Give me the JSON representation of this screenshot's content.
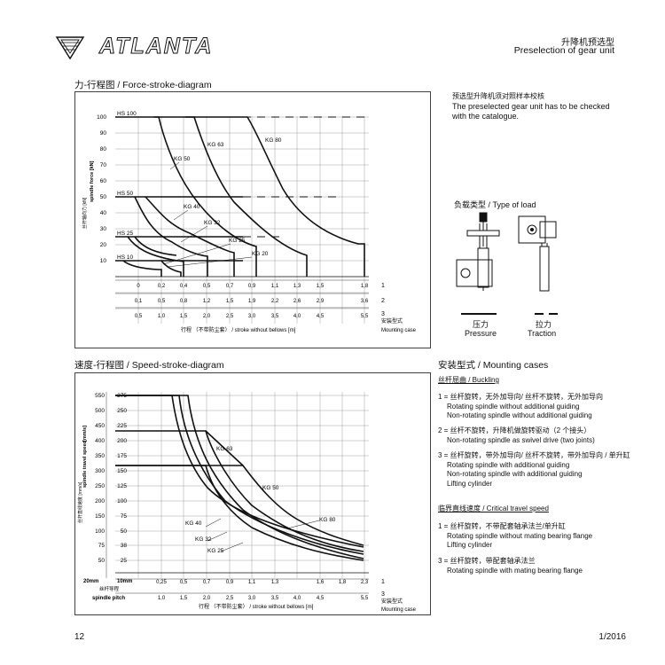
{
  "header": {
    "brand": "ATLANTA",
    "title_cn": "升降机预选型",
    "title_en": "Preselection of gear unit"
  },
  "force_diagram": {
    "title": "力-行程图 / Force-stroke-diagram",
    "y_axis_label_cn": "丝杆轴向力 [kN]",
    "y_axis_label_en": "spindle force [kN]",
    "y_ticks": [
      "100",
      "90",
      "80",
      "70",
      "60",
      "50",
      "40",
      "30",
      "20",
      "10"
    ],
    "hs_labels": [
      "HS 100",
      "HS 50",
      "HS 25",
      "HS 10"
    ],
    "kg_labels": [
      "KG 80",
      "KG 63",
      "KG 50",
      "KG 40",
      "KG 32",
      "KG 25",
      "KG 20"
    ],
    "row1": [
      "0",
      "0,2",
      "0,4",
      "0,5",
      "0,7",
      "0,9",
      "1,1",
      "1,3",
      "1,5",
      "1,8"
    ],
    "row2": [
      "0,1",
      "0,5",
      "0,8",
      "1,2",
      "1,5",
      "1,9",
      "2,2",
      "2,6",
      "2,9",
      "3,6"
    ],
    "row3": [
      "0,5",
      "1,0",
      "1,5",
      "2,0",
      "2,5",
      "3,0",
      "3,5",
      "4,0",
      "4,5",
      "5,5"
    ],
    "row_numbers": [
      "1",
      "2",
      "3"
    ],
    "mounting_cn": "安装型式",
    "mounting_en": "Mounting case",
    "x_label": "行程 （不带防尘套） / stroke without bellows [m]"
  },
  "speed_diagram": {
    "title": "速度-行程图 / Speed-stroke-diagram",
    "y_axis_label_cn": "丝杆直线速度 [mm/s]",
    "y_axis_label_en": "spindle travel speed",
    "unit": "[mm/s]",
    "y_ticks_20": [
      "550",
      "500",
      "450",
      "400",
      "350",
      "300",
      "250",
      "200",
      "150",
      "100",
      "75",
      "50"
    ],
    "y_ticks_10": [
      "275",
      "250",
      "225",
      "200",
      "175",
      "150",
      "125",
      "100",
      "75",
      "50",
      "38",
      "25"
    ],
    "kg_labels": [
      "KG 63",
      "KG 50",
      "KG 80",
      "KG 40",
      "KG 32",
      "KG 25"
    ],
    "pitch_20": "20mm",
    "pitch_10": "10mm",
    "pitch_cn": "丝杆导程",
    "pitch_en": "spindle pitch",
    "row1": [
      "0,25",
      "0,5",
      "0,7",
      "0,9",
      "1,1",
      "1,3",
      "1,6",
      "1,8",
      "2,3"
    ],
    "row3": [
      "1,0",
      "1,5",
      "2,0",
      "2,5",
      "3,0",
      "3,5",
      "4,0",
      "4,5",
      "5,5"
    ],
    "row_numbers": [
      "1",
      "3"
    ],
    "mounting_cn": "安装型式",
    "mounting_en": "Mounting case",
    "x_label": "行程 （不带防尘套） / stroke without bellows [m]"
  },
  "note": {
    "cn": "预选型升降机须对照样本校核",
    "en": "The preselected gear unit has to be checked with the catalogue."
  },
  "load_type": {
    "title": "负载类型 / Type of load",
    "pressure_cn": "压力",
    "pressure_en": "Pressure",
    "traction_cn": "拉力",
    "traction_en": "Traction"
  },
  "mounting_cases": {
    "title": "安装型式 / Mounting cases",
    "buckling_title": "丝杆屈曲 / Buckling",
    "buckling": [
      {
        "cn": "1 = 丝杆旋转，无外加导向/ 丝杆不旋转，无外加导向",
        "en": [
          "Rotating spindle without additional guiding",
          "Non-rotating spindle without additional guiding"
        ]
      },
      {
        "cn": "2 = 丝杆不旋转，升降机做旋转驱动（2 个接头）",
        "en": [
          "Non-rotating spindle as swivel drive (two joints)"
        ]
      },
      {
        "cn": "3 = 丝杆旋转，带外加导向/ 丝杆不旋转，带外加导向 / 单升缸",
        "en": [
          "Rotating spindle with additional guiding",
          "Non-rotating spindle with additional guiding",
          "Lifting cylinder"
        ]
      }
    ],
    "critical_title": "临界直线速度 / Critical travel speed",
    "critical": [
      {
        "cn": "1 = 丝杆旋转，不带配套轴承法兰/单升缸",
        "en": [
          "Rotating spindle without mating bearing flange",
          "Lifting cylinder"
        ]
      },
      {
        "cn": "3 = 丝杆旋转，带配套轴承法兰",
        "en": [
          "Rotating spindle with mating bearing flange"
        ]
      }
    ]
  },
  "footer": {
    "page": "12",
    "date": "1/2016"
  }
}
